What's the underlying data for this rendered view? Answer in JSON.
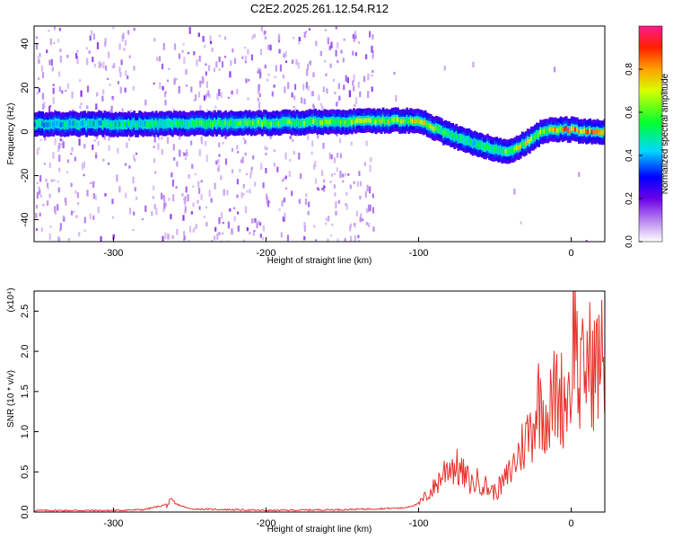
{
  "title": "C2E2.2025.261.12.54.R12",
  "chart_data": [
    {
      "type": "heatmap",
      "xlabel": "Height of straight line (km)",
      "ylabel": "Frequency (Hz)",
      "xlim": [
        -352,
        22
      ],
      "ylim": [
        -50,
        48
      ],
      "xticks": [
        -300,
        -200,
        -100,
        0
      ],
      "yticks": [
        -40,
        -20,
        0,
        20,
        40
      ],
      "colorbar": {
        "label": "Normalized spectral amplitude",
        "range": [
          0,
          1
        ],
        "ticks": [
          0.0,
          0.2,
          0.4,
          0.6,
          0.8
        ]
      },
      "ridge": {
        "x": [
          -352,
          -300,
          -250,
          -200,
          -150,
          -120,
          -100,
          -85,
          -70,
          -55,
          -45,
          -38,
          -30,
          -20,
          -10,
          0,
          10,
          22
        ],
        "y": [
          3.5,
          3.5,
          3.5,
          4,
          4.5,
          5,
          5,
          0,
          -4,
          -7,
          -9,
          -8,
          -5,
          0,
          1,
          1,
          0,
          0
        ],
        "amp": [
          0.45,
          0.5,
          0.55,
          0.6,
          0.65,
          0.7,
          0.75,
          0.55,
          0.5,
          0.55,
          0.6,
          0.7,
          0.75,
          0.7,
          0.8,
          0.9,
          0.9,
          0.9
        ]
      }
    },
    {
      "type": "line",
      "xlabel": "Height of straight line (km)",
      "ylabel": "SNR (10 * v/v)",
      "yscale_label": "(x10⁴)",
      "xlim": [
        -352,
        22
      ],
      "ylim": [
        0,
        2.75
      ],
      "xticks": [
        -300,
        -200,
        -100,
        0
      ],
      "yticks": [
        0.0,
        0.5,
        1.0,
        1.5,
        2.0,
        2.5
      ],
      "series": [
        {
          "color": "#e8312b",
          "x": [
            -352,
            -300,
            -280,
            -268,
            -262,
            -250,
            -200,
            -150,
            -110,
            -100,
            -95,
            -90,
            -85,
            -80,
            -75,
            -70,
            -65,
            -60,
            -55,
            -50,
            -45,
            -40,
            -35,
            -30,
            -25,
            -22,
            -18,
            -15,
            -10,
            -5,
            0,
            2,
            5,
            10,
            15,
            20,
            22
          ],
          "y": [
            0.02,
            0.02,
            0.03,
            0.08,
            0.12,
            0.04,
            0.02,
            0.03,
            0.05,
            0.1,
            0.2,
            0.3,
            0.45,
            0.6,
            0.55,
            0.45,
            0.35,
            0.4,
            0.3,
            0.25,
            0.35,
            0.5,
            0.7,
            0.9,
            1.1,
            1.4,
            1.3,
            1.2,
            1.5,
            1.4,
            1.6,
            2.6,
            1.5,
            1.9,
            1.8,
            1.9,
            1.85
          ]
        }
      ]
    }
  ]
}
